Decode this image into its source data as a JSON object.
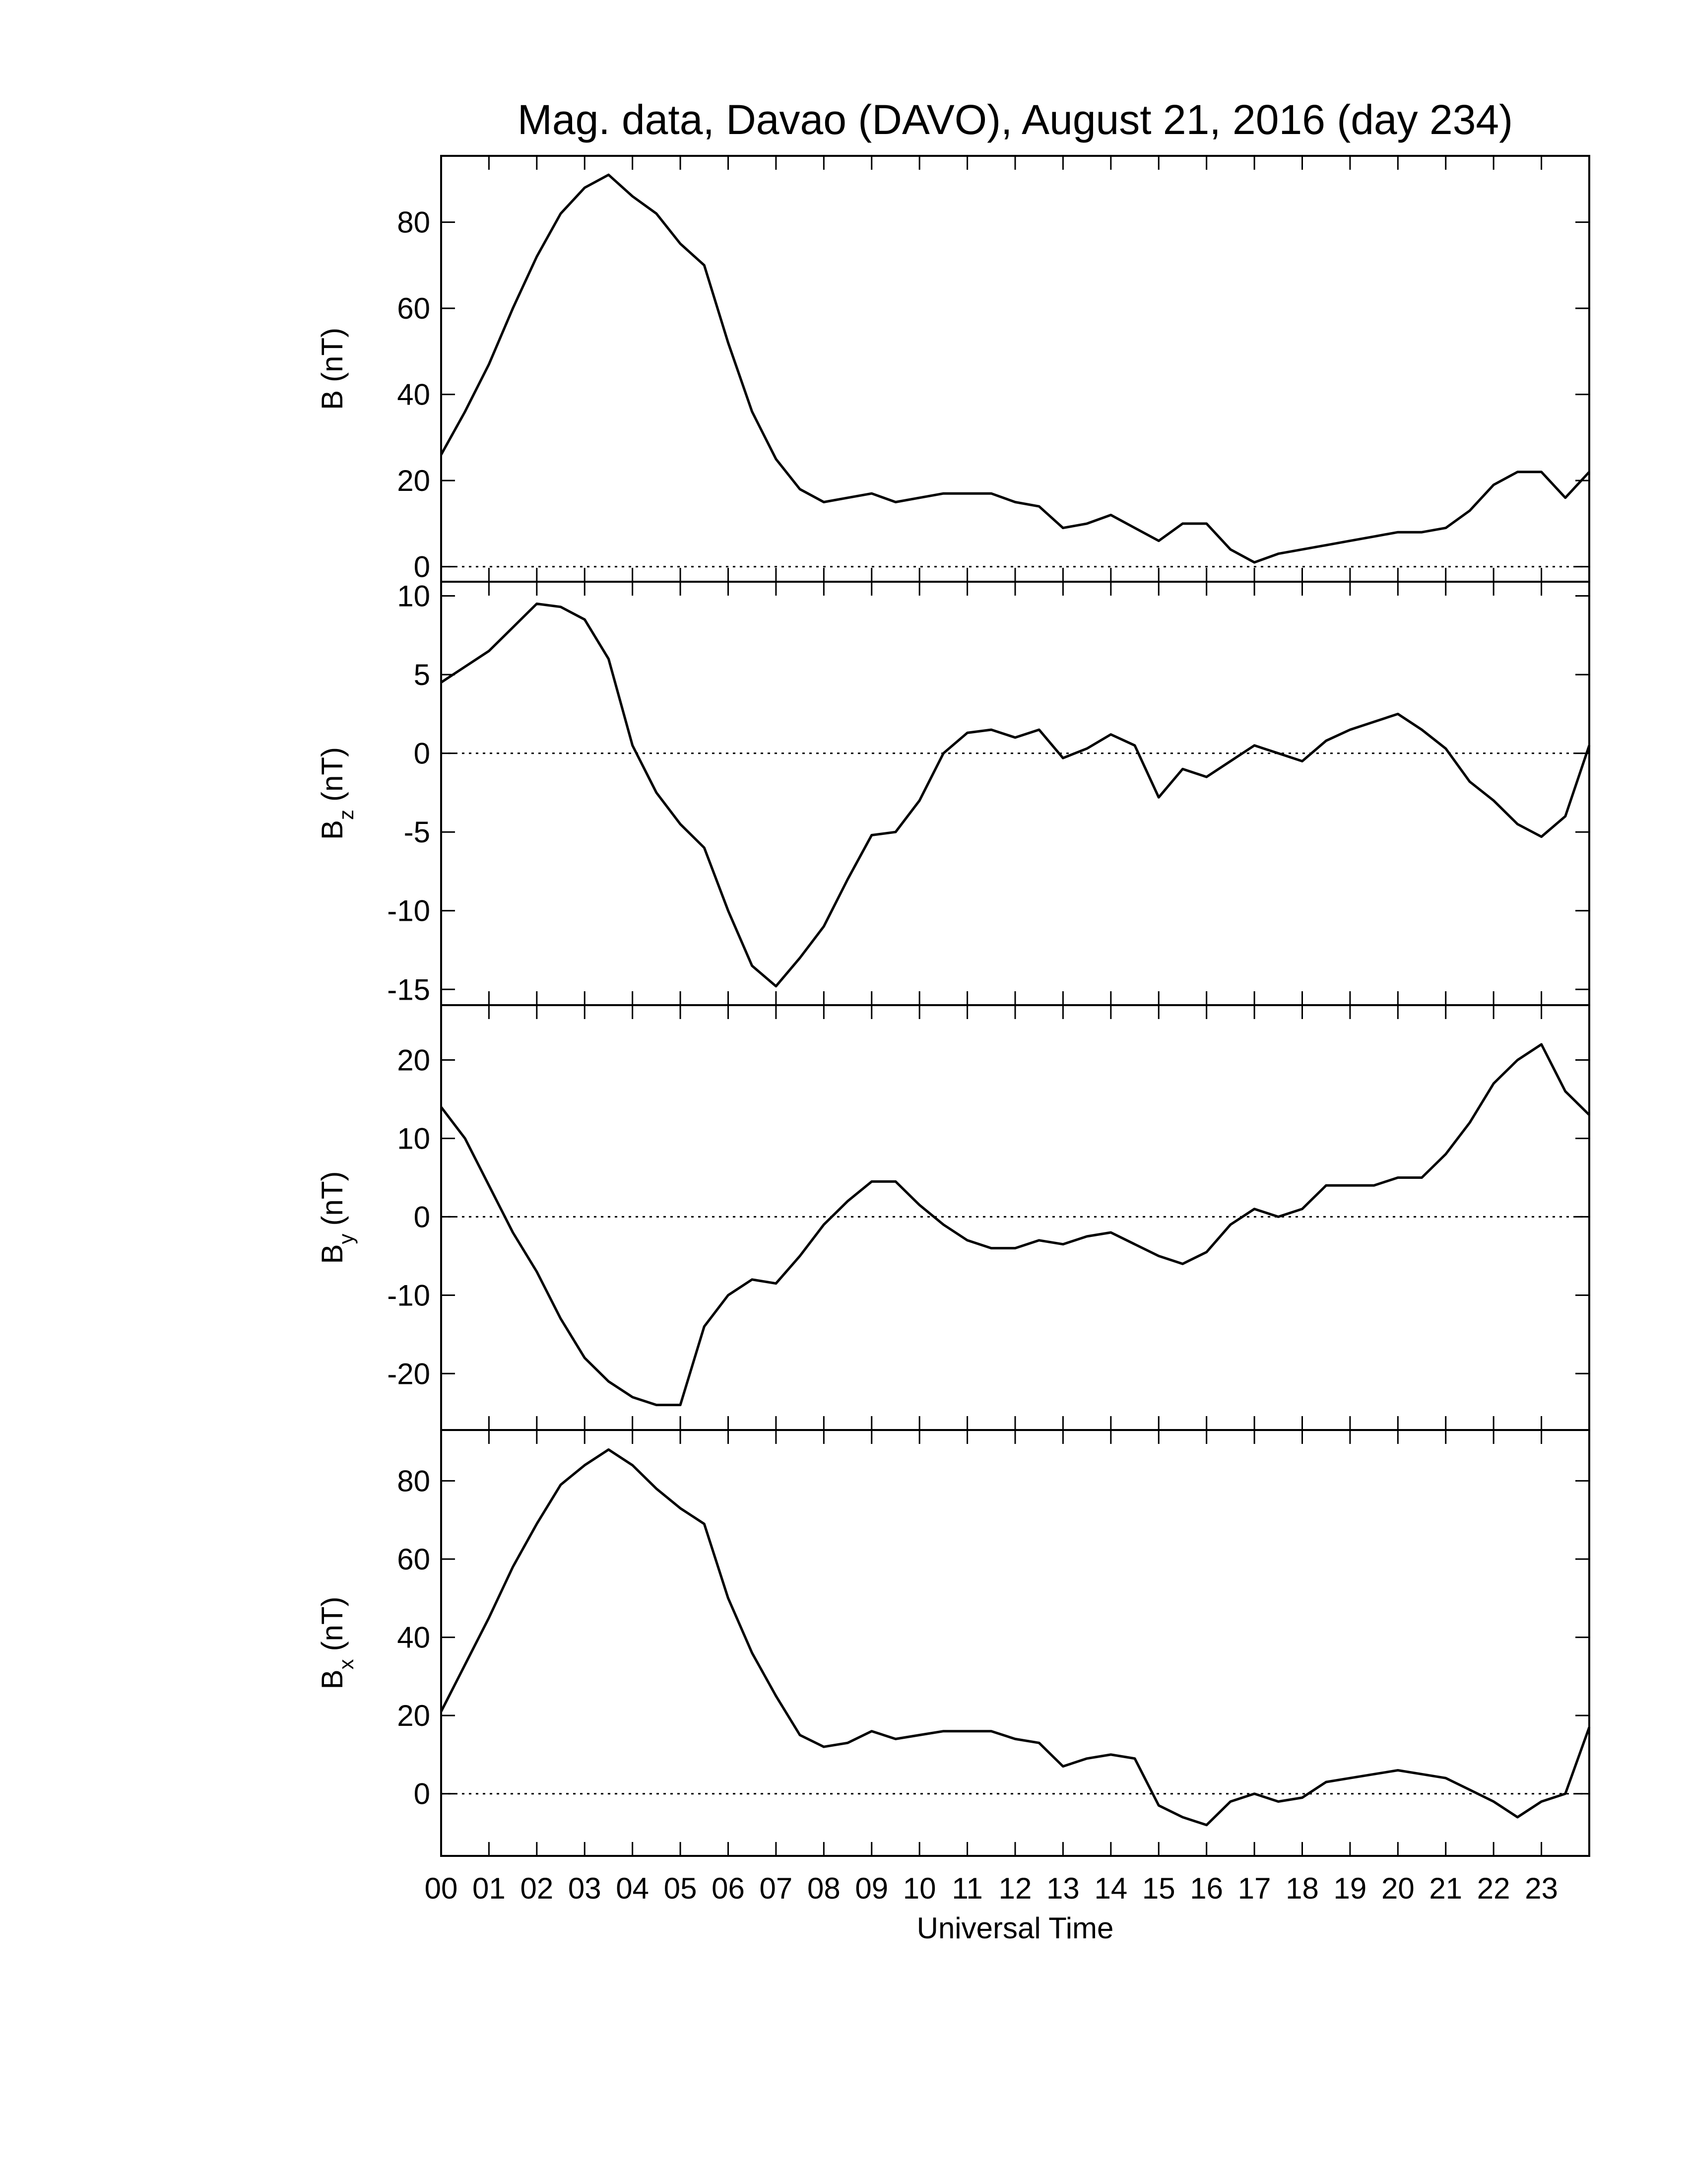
{
  "chart_data": [
    {
      "type": "line",
      "title": "Mag. data, Davao (DAVO), August 21, 2016 (day 234)",
      "ylabel": {
        "symbol": "B",
        "unit": "(nT)"
      },
      "xlim": [
        0,
        24
      ],
      "ylim": [
        -3.5,
        95.4
      ],
      "yticks": [
        0,
        20,
        40,
        60,
        80
      ],
      "zero_line": true,
      "color": "#000000",
      "x": [
        0,
        0.5,
        1,
        1.5,
        2,
        2.5,
        3,
        3.5,
        4,
        4.5,
        5,
        5.5,
        6,
        6.5,
        7,
        7.5,
        8,
        8.5,
        9,
        9.5,
        10,
        10.5,
        11,
        11.5,
        12,
        12.5,
        13,
        13.5,
        14,
        14.5,
        15,
        15.5,
        16,
        16.5,
        17,
        17.5,
        18,
        18.5,
        19,
        19.5,
        20,
        20.5,
        21,
        21.5,
        22,
        22.5,
        23,
        23.5,
        24
      ],
      "values": [
        26,
        36,
        47,
        60,
        72,
        82,
        88,
        91,
        86,
        82,
        75,
        70,
        52,
        36,
        25,
        18,
        15,
        16,
        17,
        15,
        16,
        17,
        17,
        17,
        15,
        14,
        9,
        10,
        12,
        9,
        6,
        10,
        10,
        4,
        1,
        3,
        4,
        5,
        6,
        7,
        8,
        8,
        9,
        13,
        19,
        22,
        22,
        16,
        22
      ]
    },
    {
      "type": "line",
      "ylabel": {
        "symbol": "B",
        "sub": "z",
        "unit": "(nT)"
      },
      "xlim": [
        0,
        24
      ],
      "ylim": [
        -16,
        10.9
      ],
      "yticks": [
        -15,
        -10,
        -5,
        0,
        5,
        10
      ],
      "zero_line": true,
      "color": "#000000",
      "x": [
        0,
        0.5,
        1,
        1.5,
        2,
        2.5,
        3,
        3.5,
        4,
        4.5,
        5,
        5.5,
        6,
        6.5,
        7,
        7.5,
        8,
        8.5,
        9,
        9.5,
        10,
        10.5,
        11,
        11.5,
        12,
        12.5,
        13,
        13.5,
        14,
        14.5,
        15,
        15.5,
        16,
        16.5,
        17,
        17.5,
        18,
        18.5,
        19,
        19.5,
        20,
        20.5,
        21,
        21.5,
        22,
        22.5,
        23,
        23.5,
        24
      ],
      "values": [
        4.5,
        5.5,
        6.5,
        8,
        9.5,
        9.3,
        8.5,
        6,
        0.5,
        -2.5,
        -4.5,
        -6,
        -10,
        -13.5,
        -14.8,
        -13,
        -11,
        -8,
        -5.2,
        -5,
        -3,
        0,
        1.3,
        1.5,
        1,
        1.5,
        -0.3,
        0.3,
        1.2,
        0.5,
        -2.8,
        -1,
        -1.5,
        -0.5,
        0.5,
        0,
        -0.5,
        0.8,
        1.5,
        2,
        2.5,
        1.5,
        0.3,
        -1.8,
        -3,
        -4.5,
        -5.3,
        -4,
        0.5
      ]
    },
    {
      "type": "line",
      "ylabel": {
        "symbol": "B",
        "sub": "y",
        "unit": "(nT)"
      },
      "xlim": [
        0,
        24
      ],
      "ylim": [
        -27.2,
        27
      ],
      "yticks": [
        -20,
        -10,
        0,
        10,
        20
      ],
      "zero_line": true,
      "color": "#000000",
      "x": [
        0,
        0.5,
        1,
        1.5,
        2,
        2.5,
        3,
        3.5,
        4,
        4.5,
        5,
        5.5,
        6,
        6.5,
        7,
        7.5,
        8,
        8.5,
        9,
        9.5,
        10,
        10.5,
        11,
        11.5,
        12,
        12.5,
        13,
        13.5,
        14,
        14.5,
        15,
        15.5,
        16,
        16.5,
        17,
        17.5,
        18,
        18.5,
        19,
        19.5,
        20,
        20.5,
        21,
        21.5,
        22,
        22.5,
        23,
        23.5,
        24
      ],
      "values": [
        14,
        10,
        4,
        -2,
        -7,
        -13,
        -18,
        -21,
        -23,
        -24,
        -24,
        -14,
        -10,
        -8,
        -8.5,
        -5,
        -1,
        2,
        4.5,
        4.5,
        1.5,
        -1,
        -3,
        -4,
        -4,
        -3,
        -3.5,
        -2.5,
        -2,
        -3.5,
        -5,
        -6,
        -4.5,
        -1,
        1,
        0,
        1,
        4,
        4,
        4,
        5,
        5,
        8,
        12,
        17,
        20,
        22,
        16,
        13
      ]
    },
    {
      "type": "line",
      "ylabel": {
        "symbol": "B",
        "sub": "x",
        "unit": "(nT)"
      },
      "xlabel": "Universal Time",
      "xlim": [
        0,
        24
      ],
      "ylim": [
        -15.9,
        93
      ],
      "yticks": [
        0,
        20,
        40,
        60,
        80
      ],
      "zero_line": true,
      "color": "#000000",
      "xticks": [
        {
          "value": 0,
          "label": "00"
        },
        {
          "value": 1,
          "label": "01"
        },
        {
          "value": 2,
          "label": "02"
        },
        {
          "value": 3,
          "label": "03"
        },
        {
          "value": 4,
          "label": "04"
        },
        {
          "value": 5,
          "label": "05"
        },
        {
          "value": 6,
          "label": "06"
        },
        {
          "value": 7,
          "label": "07"
        },
        {
          "value": 8,
          "label": "08"
        },
        {
          "value": 9,
          "label": "09"
        },
        {
          "value": 10,
          "label": "10"
        },
        {
          "value": 11,
          "label": "11"
        },
        {
          "value": 12,
          "label": "12"
        },
        {
          "value": 13,
          "label": "13"
        },
        {
          "value": 14,
          "label": "14"
        },
        {
          "value": 15,
          "label": "15"
        },
        {
          "value": 16,
          "label": "16"
        },
        {
          "value": 17,
          "label": "17"
        },
        {
          "value": 18,
          "label": "18"
        },
        {
          "value": 19,
          "label": "19"
        },
        {
          "value": 20,
          "label": "20"
        },
        {
          "value": 21,
          "label": "21"
        },
        {
          "value": 22,
          "label": "22"
        },
        {
          "value": 23,
          "label": "23"
        }
      ],
      "x": [
        0,
        0.5,
        1,
        1.5,
        2,
        2.5,
        3,
        3.5,
        4,
        4.5,
        5,
        5.5,
        6,
        6.5,
        7,
        7.5,
        8,
        8.5,
        9,
        9.5,
        10,
        10.5,
        11,
        11.5,
        12,
        12.5,
        13,
        13.5,
        14,
        14.5,
        15,
        15.5,
        16,
        16.5,
        17,
        17.5,
        18,
        18.5,
        19,
        19.5,
        20,
        20.5,
        21,
        21.5,
        22,
        22.5,
        23,
        23.5,
        24
      ],
      "values": [
        21,
        33,
        45,
        58,
        69,
        79,
        84,
        88,
        84,
        78,
        73,
        69,
        50,
        36,
        25,
        15,
        12,
        13,
        16,
        14,
        15,
        16,
        16,
        16,
        14,
        13,
        7,
        9,
        10,
        9,
        -3,
        -6,
        -8,
        -2,
        0,
        -2,
        -1,
        3,
        4,
        5,
        6,
        5,
        4,
        1,
        -2,
        -6,
        -2,
        0,
        17
      ]
    }
  ]
}
